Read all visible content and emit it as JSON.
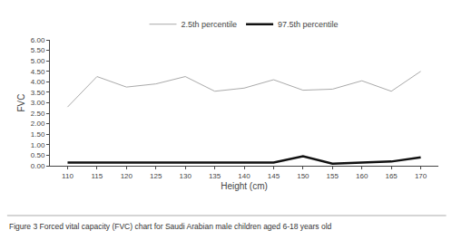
{
  "chart_data": {
    "type": "line",
    "x": [
      110,
      115,
      120,
      125,
      130,
      135,
      140,
      145,
      150,
      155,
      160,
      165,
      170
    ],
    "series": [
      {
        "name": "2.5th percentile",
        "color": "#aaaaaa",
        "values": [
          2.8,
          4.25,
          3.75,
          3.9,
          4.25,
          3.55,
          3.7,
          4.1,
          3.6,
          3.65,
          4.05,
          3.55,
          4.5
        ]
      },
      {
        "name": "97.5th percentile",
        "color": "#111111",
        "values": [
          0.15,
          0.15,
          0.15,
          0.15,
          0.15,
          0.15,
          0.15,
          0.15,
          0.45,
          0.1,
          0.15,
          0.2,
          0.4
        ]
      }
    ],
    "xlabel": "Height (cm)",
    "ylabel": "FVC",
    "xlim": [
      107,
      173
    ],
    "xticks": [
      110,
      115,
      120,
      125,
      130,
      135,
      140,
      145,
      150,
      155,
      160,
      165,
      170
    ],
    "ylim": [
      0.0,
      6.0
    ],
    "yticks": [
      {
        "value": 0,
        "label": "0.00"
      },
      {
        "value": 0.5,
        "label": "0.50"
      },
      {
        "value": 1,
        "label": "1.00"
      },
      {
        "value": 1.5,
        "label": "1.50"
      },
      {
        "value": 2,
        "label": "2.00"
      },
      {
        "value": 2.5,
        "label": "2.50"
      },
      {
        "value": 3,
        "label": "3.00"
      },
      {
        "value": 3.5,
        "label": "3.50"
      },
      {
        "value": 4,
        "label": "4.00"
      },
      {
        "value": 4.5,
        "label": "4.50"
      },
      {
        "value": 5,
        "label": "5.00"
      },
      {
        "value": 5.5,
        "label": "5.50"
      },
      {
        "value": 6,
        "label": "6.00"
      }
    ],
    "annotations": [
      "Figure 3 Forced vital capacity (FVC) chart for Saudi Arabian male children aged 6-18 years old"
    ],
    "legend": "upper center",
    "grid": false
  }
}
